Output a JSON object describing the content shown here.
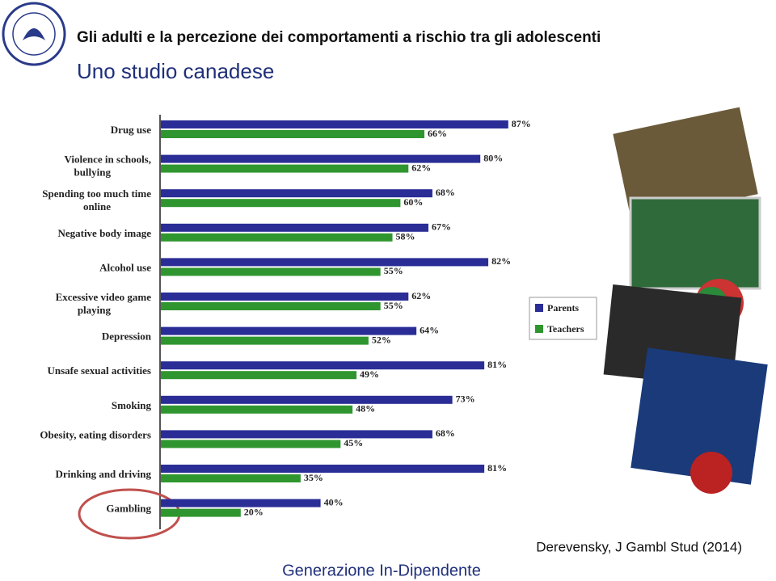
{
  "slide": {
    "title": "Gli adulti e la percezione dei comportamenti a rischio tra gli adolescenti",
    "subtitle": "Uno studio canadese",
    "footer": "Generazione In-Dipendente",
    "citation": "Derevensky, J Gambl Stud (2014)"
  },
  "chart_data": {
    "type": "hbar",
    "categories": [
      "Drug use",
      "Violence in schools, bullying",
      "Spending too much time online",
      "Negative body image",
      "Alcohol use",
      "Excessive video game playing",
      "Depression",
      "Unsafe sexual activities",
      "Smoking",
      "Obesity, eating disorders",
      "Drinking and driving",
      "Gambling"
    ],
    "series": [
      {
        "name": "Parents",
        "color": "#2a2d96",
        "values": [
          87,
          80,
          68,
          67,
          82,
          62,
          64,
          81,
          73,
          68,
          81,
          40
        ],
        "value_labels": [
          "87%",
          "80%",
          "68%",
          "67%",
          "82%",
          "62%",
          "64%",
          "81%",
          "73%",
          "68%",
          "81%",
          "40%"
        ]
      },
      {
        "name": "Teachers",
        "color": "#2f962f",
        "values": [
          66,
          62,
          60,
          58,
          55,
          55,
          52,
          49,
          48,
          45,
          35,
          20
        ],
        "value_labels": [
          "66%",
          "62%",
          "60%",
          "58%",
          "55%",
          "55%",
          "52%",
          "49%",
          "48%",
          "45%",
          "35%",
          "20%"
        ]
      }
    ],
    "legend": "right"
  }
}
